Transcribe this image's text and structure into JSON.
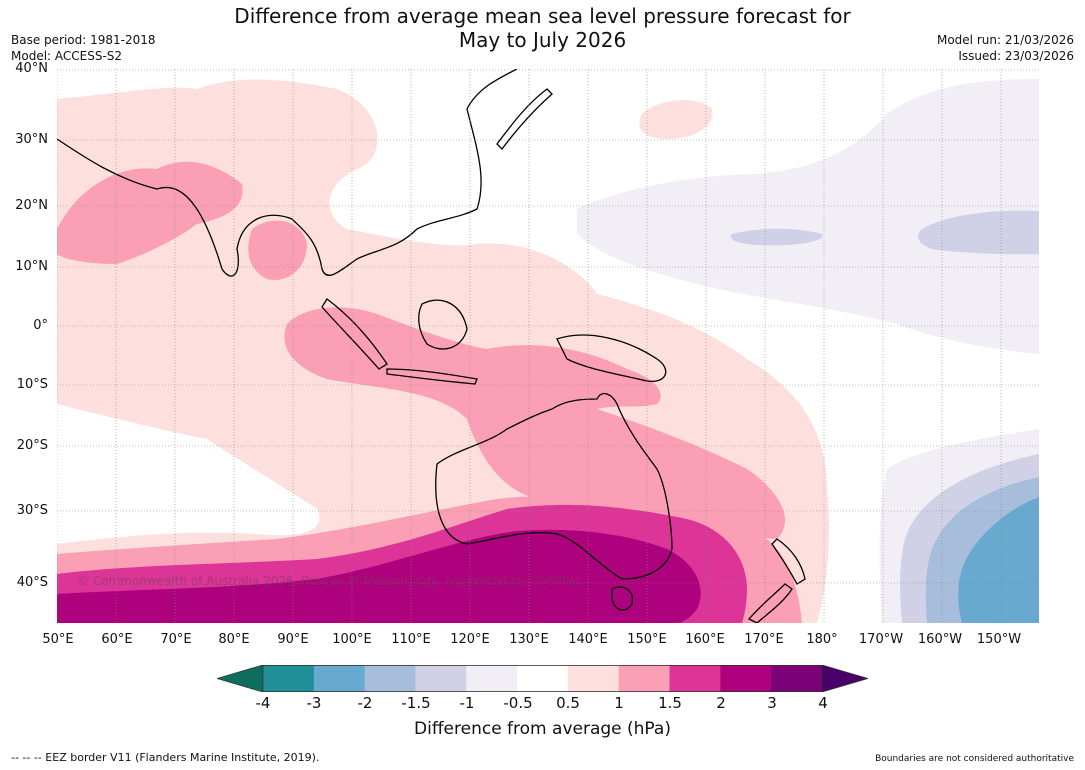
{
  "title_line1": "Difference from average mean sea level pressure forecast for",
  "title_line2": "May to July 2026",
  "base_period": "Base period: 1981-2018",
  "model": "Model: ACCESS-S2",
  "model_run": "Model run: 21/03/2026",
  "issued": "Issued: 23/03/2026",
  "lat_labels": [
    "40°N",
    "30°N",
    "20°N",
    "10°N",
    "0°",
    "10°S",
    "20°S",
    "30°S",
    "40°S"
  ],
  "lon_labels": [
    "50°E",
    "60°E",
    "70°E",
    "80°E",
    "90°E",
    "100°E",
    "110°E",
    "120°E",
    "130°E",
    "140°E",
    "150°E",
    "160°E",
    "170°E",
    "180°",
    "170°W",
    "160°W",
    "150°W"
  ],
  "copyright": "© Commonwealth of Australia 2026, Bureau of Meteorology, supported by COSPPac",
  "colorbar": {
    "ticks": [
      "-4",
      "-3",
      "-2",
      "-1.5",
      "-1",
      "-0.5",
      "0.5",
      "1",
      "1.5",
      "2",
      "3",
      "4"
    ],
    "colors": [
      "#0d6e5e",
      "#1f9098",
      "#67a9cf",
      "#a6bddb",
      "#d0d1e6",
      "#f1eef6",
      "#ffffff",
      "#fde0dd",
      "#fa9fb5",
      "#dd3497",
      "#ae017e",
      "#7a0177",
      "#49006a"
    ],
    "label": "Difference from average (hPa)"
  },
  "footer_left": "--  --  -- EEZ border V11 (Flanders Marine Institute, 2019).",
  "footer_right": "Boundaries are not considered authoritative"
}
